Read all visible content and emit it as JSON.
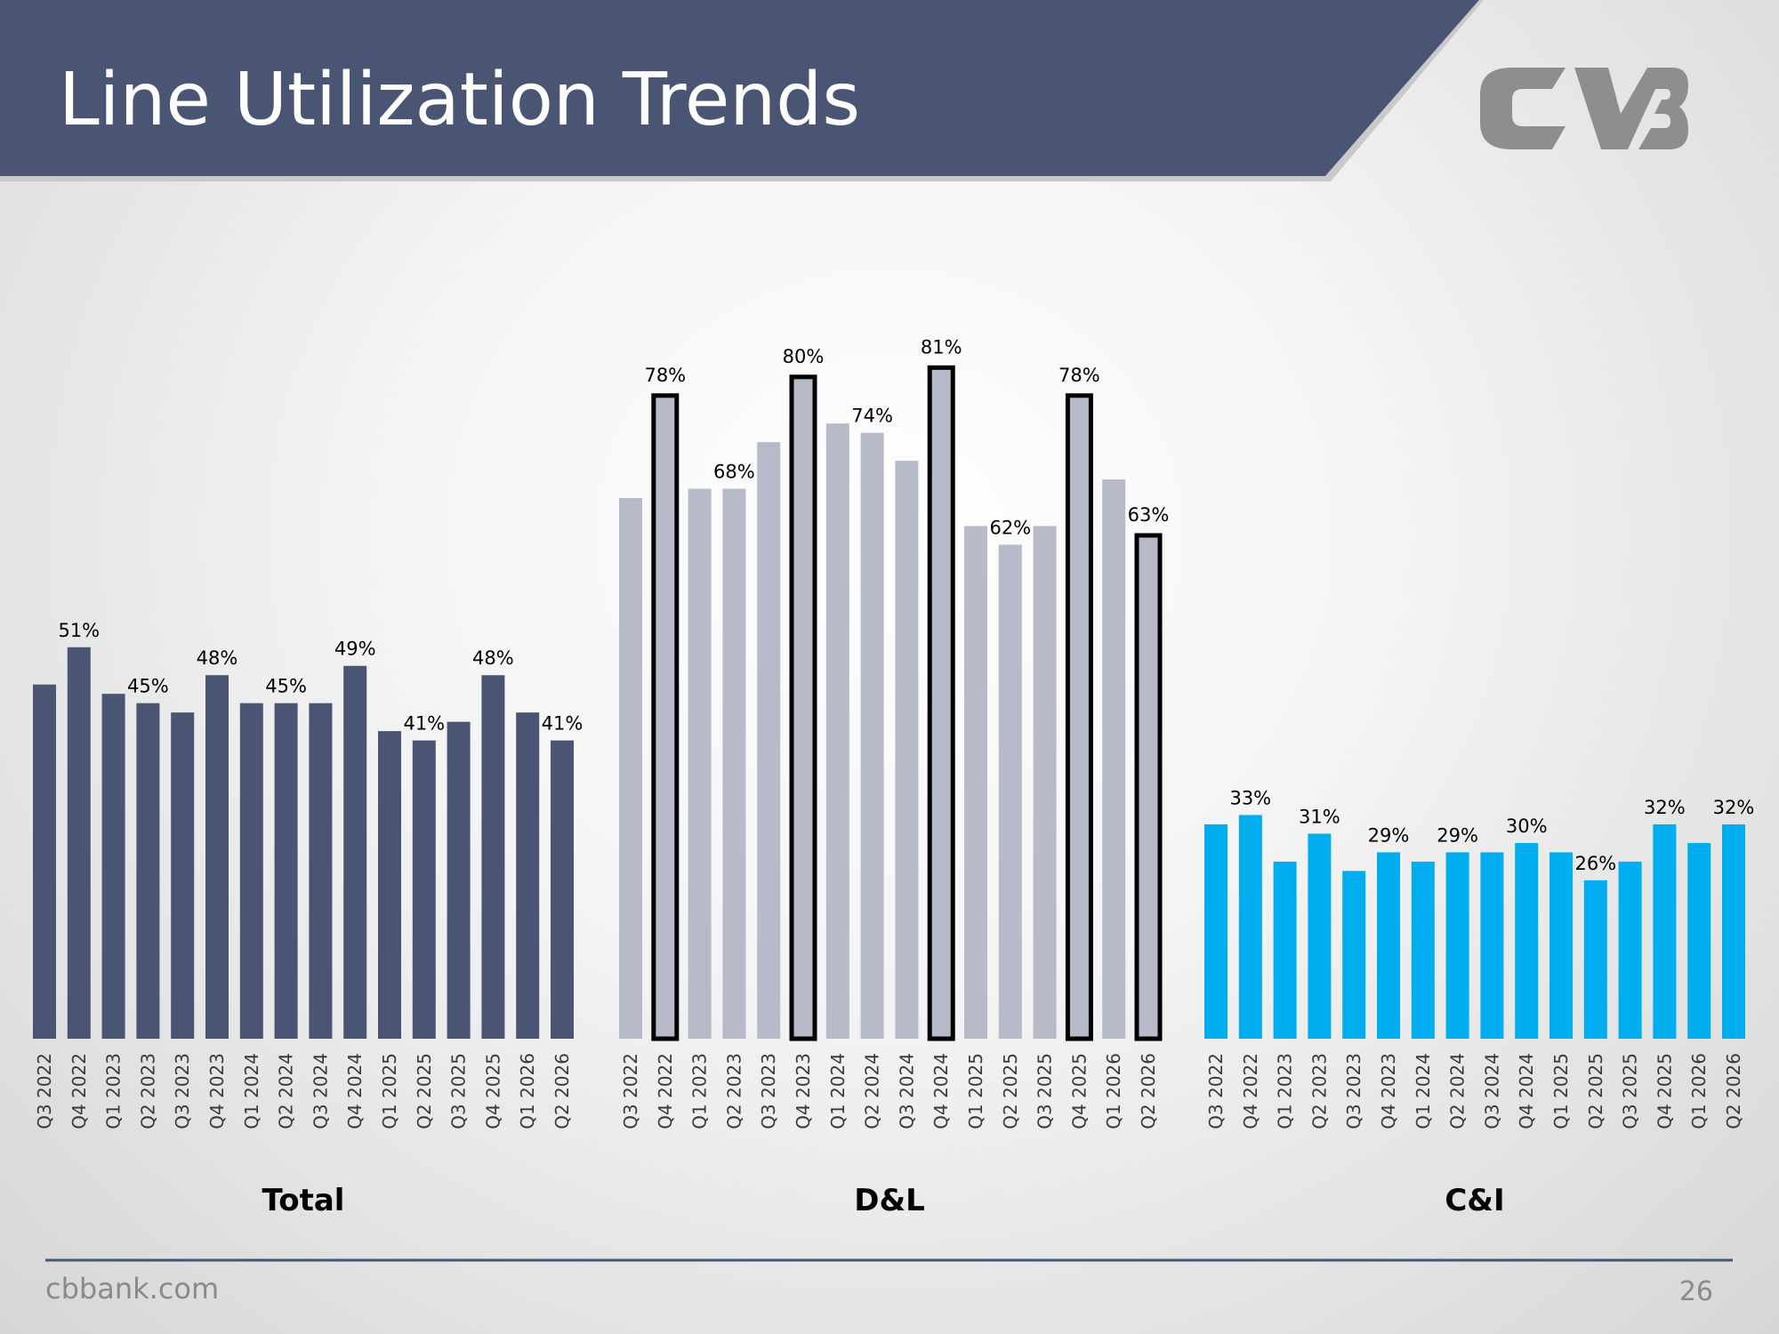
{
  "header": {
    "title": "Line Utilization Trends"
  },
  "footer": {
    "site": "cbbank.com",
    "page": "26"
  },
  "chart_data": [
    {
      "type": "bar",
      "title": "Total",
      "categories": [
        "Q3 2022",
        "Q4 2022",
        "Q1 2023",
        "Q2 2023",
        "Q3 2023",
        "Q4 2023",
        "Q1 2024",
        "Q2 2024",
        "Q3 2024",
        "Q4 2024",
        "Q1 2025",
        "Q2 2025",
        "Q3 2025",
        "Q4 2025",
        "Q1 2026",
        "Q2 2026"
      ],
      "values": [
        47,
        51,
        46,
        45,
        44,
        48,
        45,
        45,
        45,
        49,
        42,
        41,
        43,
        48,
        44,
        41
      ],
      "value_labels": [
        null,
        "51%",
        null,
        "45%",
        null,
        "48%",
        null,
        "45%",
        null,
        "49%",
        null,
        "41%",
        null,
        "48%",
        null,
        "41%"
      ],
      "color": "#4a5573",
      "ylim": [
        9,
        90
      ]
    },
    {
      "type": "bar",
      "title": "D&L",
      "categories": [
        "Q3 2022",
        "Q4 2022",
        "Q1 2023",
        "Q2 2023",
        "Q3 2023",
        "Q4 2023",
        "Q1 2024",
        "Q2 2024",
        "Q3 2024",
        "Q4 2024",
        "Q1 2025",
        "Q2 2025",
        "Q3 2025",
        "Q4 2025",
        "Q1 2026",
        "Q2 2026"
      ],
      "values": [
        67,
        78,
        68,
        68,
        73,
        80,
        75,
        74,
        71,
        81,
        64,
        62,
        64,
        78,
        69,
        63
      ],
      "value_labels": [
        null,
        "78%",
        null,
        "68%",
        null,
        "80%",
        null,
        "74%",
        null,
        "81%",
        null,
        "62%",
        null,
        "78%",
        null,
        "63%"
      ],
      "outlined": [
        false,
        true,
        false,
        false,
        false,
        true,
        false,
        false,
        false,
        true,
        false,
        false,
        false,
        true,
        false,
        true
      ],
      "color": "#b6bac9",
      "ylim": [
        9,
        90
      ]
    },
    {
      "type": "bar",
      "title": "C&I",
      "categories": [
        "Q3 2022",
        "Q4 2022",
        "Q1 2023",
        "Q2 2023",
        "Q3 2023",
        "Q4 2023",
        "Q1 2024",
        "Q2 2024",
        "Q3 2024",
        "Q4 2024",
        "Q1 2025",
        "Q2 2025",
        "Q3 2025",
        "Q4 2025",
        "Q1 2026",
        "Q2 2026"
      ],
      "values": [
        32,
        33,
        28,
        31,
        27,
        29,
        28,
        29,
        29,
        30,
        29,
        26,
        28,
        32,
        30,
        32
      ],
      "value_labels": [
        null,
        "33%",
        null,
        "31%",
        null,
        "29%",
        null,
        "29%",
        null,
        "30%",
        null,
        "26%",
        null,
        "32%",
        null,
        "32%"
      ],
      "color": "#00aeef",
      "ylim": [
        9,
        90
      ]
    }
  ]
}
